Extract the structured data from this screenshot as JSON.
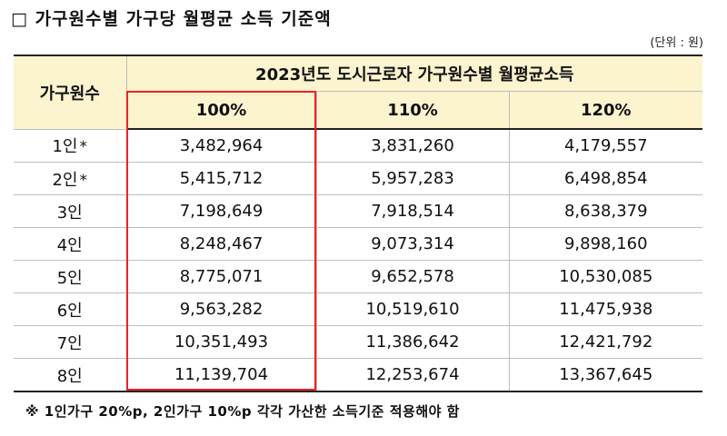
{
  "title": "□ 가구원수별 가구당 월평균 소득 기준액",
  "unit_note": "(단위 : 원)",
  "table": {
    "row_header": "가구원수",
    "group_header": "2023년도 도시근로자 가구원수별 월평균소득",
    "columns": [
      "100%",
      "110%",
      "120%"
    ],
    "rows": [
      {
        "label": "1인",
        "mark": "*",
        "values": [
          "3,482,964",
          "3,831,260",
          "4,179,557"
        ]
      },
      {
        "label": "2인",
        "mark": "*",
        "values": [
          "5,415,712",
          "5,957,283",
          "6,498,854"
        ]
      },
      {
        "label": "3인",
        "values": [
          "7,198,649",
          "7,918,514",
          "8,638,379"
        ]
      },
      {
        "label": "4인",
        "values": [
          "8,248,467",
          "9,073,314",
          "9,898,160"
        ]
      },
      {
        "label": "5인",
        "values": [
          "8,775,071",
          "9,652,578",
          "10,530,085"
        ]
      },
      {
        "label": "6인",
        "values": [
          "9,563,282",
          "10,519,610",
          "11,475,938"
        ]
      },
      {
        "label": "7인",
        "values": [
          "10,351,493",
          "11,386,642",
          "12,421,792"
        ]
      },
      {
        "label": "8인",
        "values": [
          "11,139,704",
          "12,253,674",
          "13,367,645"
        ]
      }
    ]
  },
  "highlight_color": "#ee2222",
  "header_color": "#fcf3cf",
  "footnote": "※ 1인가구 20%p, 2인가구 10%p 각각 가산한 소득기준 적용해야 함"
}
